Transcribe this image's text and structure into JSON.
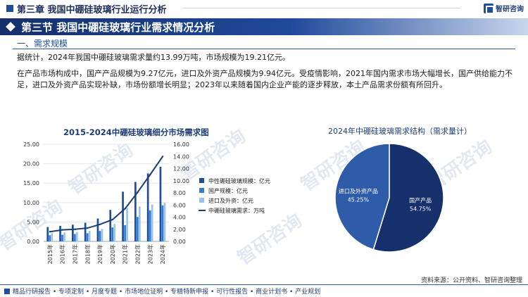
{
  "header": {
    "chapter": "第三章 我国中硼硅玻璃行业运行分析",
    "logo_text": "智研咨询"
  },
  "banner": {
    "title": "第三节 我国中硼硅玻璃行业需求情况分析"
  },
  "section": {
    "title": "一、需求规模"
  },
  "paragraphs": {
    "p1": "据统计，2024年我国中硼硅玻璃需求量约13.99万吨，市场规模为19.21亿元。",
    "p2": "在产品市场构成中，国产产品规模为9.27亿元，进口及外资产品规模为9.94亿元。受疫情影响，2021年国内需求市场大幅增长，国产供给能力不足，进口及外资产品实现补缺，市场份额增长明显；2023年以来随着国内企业产能的逐步释放，本土产品需求份额有所回升。"
  },
  "watermark": "智研咨询",
  "chart_data": [
    {
      "type": "bar",
      "title": "2015-2024中硼硅玻璃细分市场需求图",
      "categories": [
        "2015年",
        "2016年",
        "2017年",
        "2018年",
        "2019年",
        "2020年",
        "2021年",
        "2022年",
        "2023年",
        "2024年"
      ],
      "ylim_left": [
        0,
        25
      ],
      "ylim_right": [
        0,
        16
      ],
      "yticks_left": [
        "0.00",
        "5.00",
        "10.00",
        "15.00",
        "20.00",
        "25.00"
      ],
      "yticks_right": [
        "0.00",
        "2.00",
        "4.00",
        "6.00",
        "8.00",
        "10.00",
        "12.00",
        "14.00",
        "16.00"
      ],
      "series": [
        {
          "name": "中性硼硅玻璃规模：亿元",
          "axis": "left",
          "color": "#1f4e9c",
          "values": [
            3.7,
            4.0,
            4.3,
            4.8,
            5.9,
            8.1,
            12.8,
            15.3,
            17.5,
            19.21
          ]
        },
        {
          "name": "国产规模：亿元",
          "axis": "left",
          "color": "#2f7fd0",
          "values": [
            1.6,
            1.7,
            1.9,
            2.1,
            2.7,
            3.6,
            4.2,
            6.3,
            8.0,
            9.27
          ]
        },
        {
          "name": "进口及外资：亿元",
          "axis": "left",
          "color": "#9cc3ee",
          "values": [
            2.1,
            2.3,
            2.4,
            2.7,
            3.2,
            4.5,
            8.6,
            9.0,
            9.5,
            9.94
          ]
        },
        {
          "name": "中硼硅玻璃需求：万吨",
          "axis": "right",
          "type": "line",
          "color": "#1f3e78",
          "values": [
            1.6,
            1.9,
            2.0,
            2.2,
            2.8,
            3.6,
            5.4,
            8.1,
            11.0,
            13.99
          ]
        }
      ],
      "legend_position": "right"
    },
    {
      "type": "pie",
      "title": "2024年中硼硅玻璃需求结构（需求量计）",
      "slices": [
        {
          "label": "国产产品",
          "value": 54.75,
          "value_label": "54.75%",
          "color": "#15306b"
        },
        {
          "label": "进口及外资产品",
          "value": 45.25,
          "value_label": "45.25%",
          "color": "#2f5ca8"
        }
      ]
    }
  ],
  "footer": {
    "links": "精品行研报告 • 专项定制 • 月度专题 • 市场地位证明 • 专精特新申报 • 可行性报告 • 商业计划书 • 产业规划",
    "source": "资料来源：公开资料、智研咨询整理"
  }
}
